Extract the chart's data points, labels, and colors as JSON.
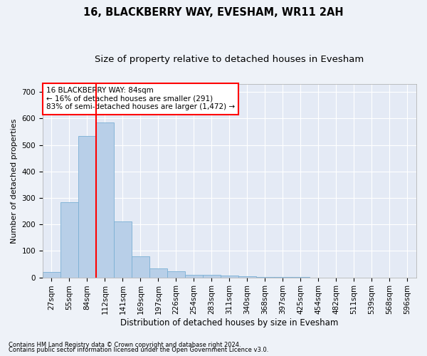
{
  "title1": "16, BLACKBERRY WAY, EVESHAM, WR11 2AH",
  "title2": "Size of property relative to detached houses in Evesham",
  "xlabel": "Distribution of detached houses by size in Evesham",
  "ylabel": "Number of detached properties",
  "footer1": "Contains HM Land Registry data © Crown copyright and database right 2024.",
  "footer2": "Contains public sector information licensed under the Open Government Licence v3.0.",
  "annotation_line1": "16 BLACKBERRY WAY: 84sqm",
  "annotation_line2": "← 16% of detached houses are smaller (291)",
  "annotation_line3": "83% of semi-detached houses are larger (1,472) →",
  "bar_color": "#b8cfe8",
  "bar_edge_color": "#7aafd4",
  "categories": [
    "27sqm",
    "55sqm",
    "84sqm",
    "112sqm",
    "141sqm",
    "169sqm",
    "197sqm",
    "226sqm",
    "254sqm",
    "283sqm",
    "311sqm",
    "340sqm",
    "368sqm",
    "397sqm",
    "425sqm",
    "454sqm",
    "482sqm",
    "511sqm",
    "539sqm",
    "568sqm",
    "596sqm"
  ],
  "n_bars": 21,
  "values": [
    20,
    285,
    535,
    585,
    210,
    80,
    35,
    22,
    10,
    10,
    8,
    3,
    2,
    1,
    1,
    0,
    0,
    0,
    0,
    0,
    0
  ],
  "red_line_bar_index": 2,
  "ylim": [
    0,
    730
  ],
  "yticks": [
    0,
    100,
    200,
    300,
    400,
    500,
    600,
    700
  ],
  "background_color": "#eef2f8",
  "plot_bg_color": "#e4eaf5",
  "grid_color": "#ffffff",
  "title1_fontsize": 10.5,
  "title2_fontsize": 9.5,
  "xlabel_fontsize": 8.5,
  "ylabel_fontsize": 8,
  "tick_fontsize": 7.5,
  "annot_fontsize": 7.5
}
